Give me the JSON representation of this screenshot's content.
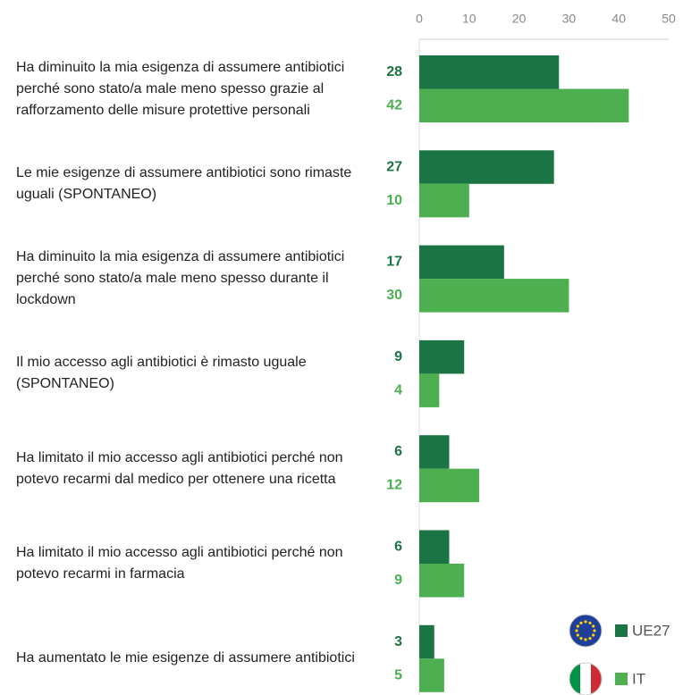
{
  "chart_data": {
    "type": "barh",
    "categories": [
      "Ha diminuito la mia esigenza di assumere antibiotici perché sono stato/a male meno spesso grazie al rafforzamento delle misure protettive personali",
      "Le mie esigenze di assumere antibiotici sono rimaste uguali (SPONTANEO)",
      "Ha diminuito la mia esigenza di assumere antibiotici perché sono stato/a male meno spesso durante il lockdown",
      "Il mio accesso agli antibiotici è rimasto uguale (SPONTANEO)",
      "Ha limitato il mio accesso agli antibiotici perché non potevo recarmi dal medico per ottenere una ricetta",
      "Ha limitato il mio accesso agli antibiotici perché non potevo recarmi in farmacia",
      "Ha aumentato le mie esigenze di assumere antibiotici"
    ],
    "series": [
      {
        "name": "UE27",
        "color": "#1b7443",
        "values": [
          28,
          27,
          17,
          9,
          6,
          6,
          3
        ]
      },
      {
        "name": "IT",
        "color": "#4caf50",
        "values": [
          42,
          10,
          30,
          4,
          12,
          9,
          5
        ]
      }
    ],
    "xlim": [
      0,
      50
    ],
    "xticks": [
      0,
      10,
      20,
      30,
      40,
      50
    ],
    "legend": "lower right"
  }
}
